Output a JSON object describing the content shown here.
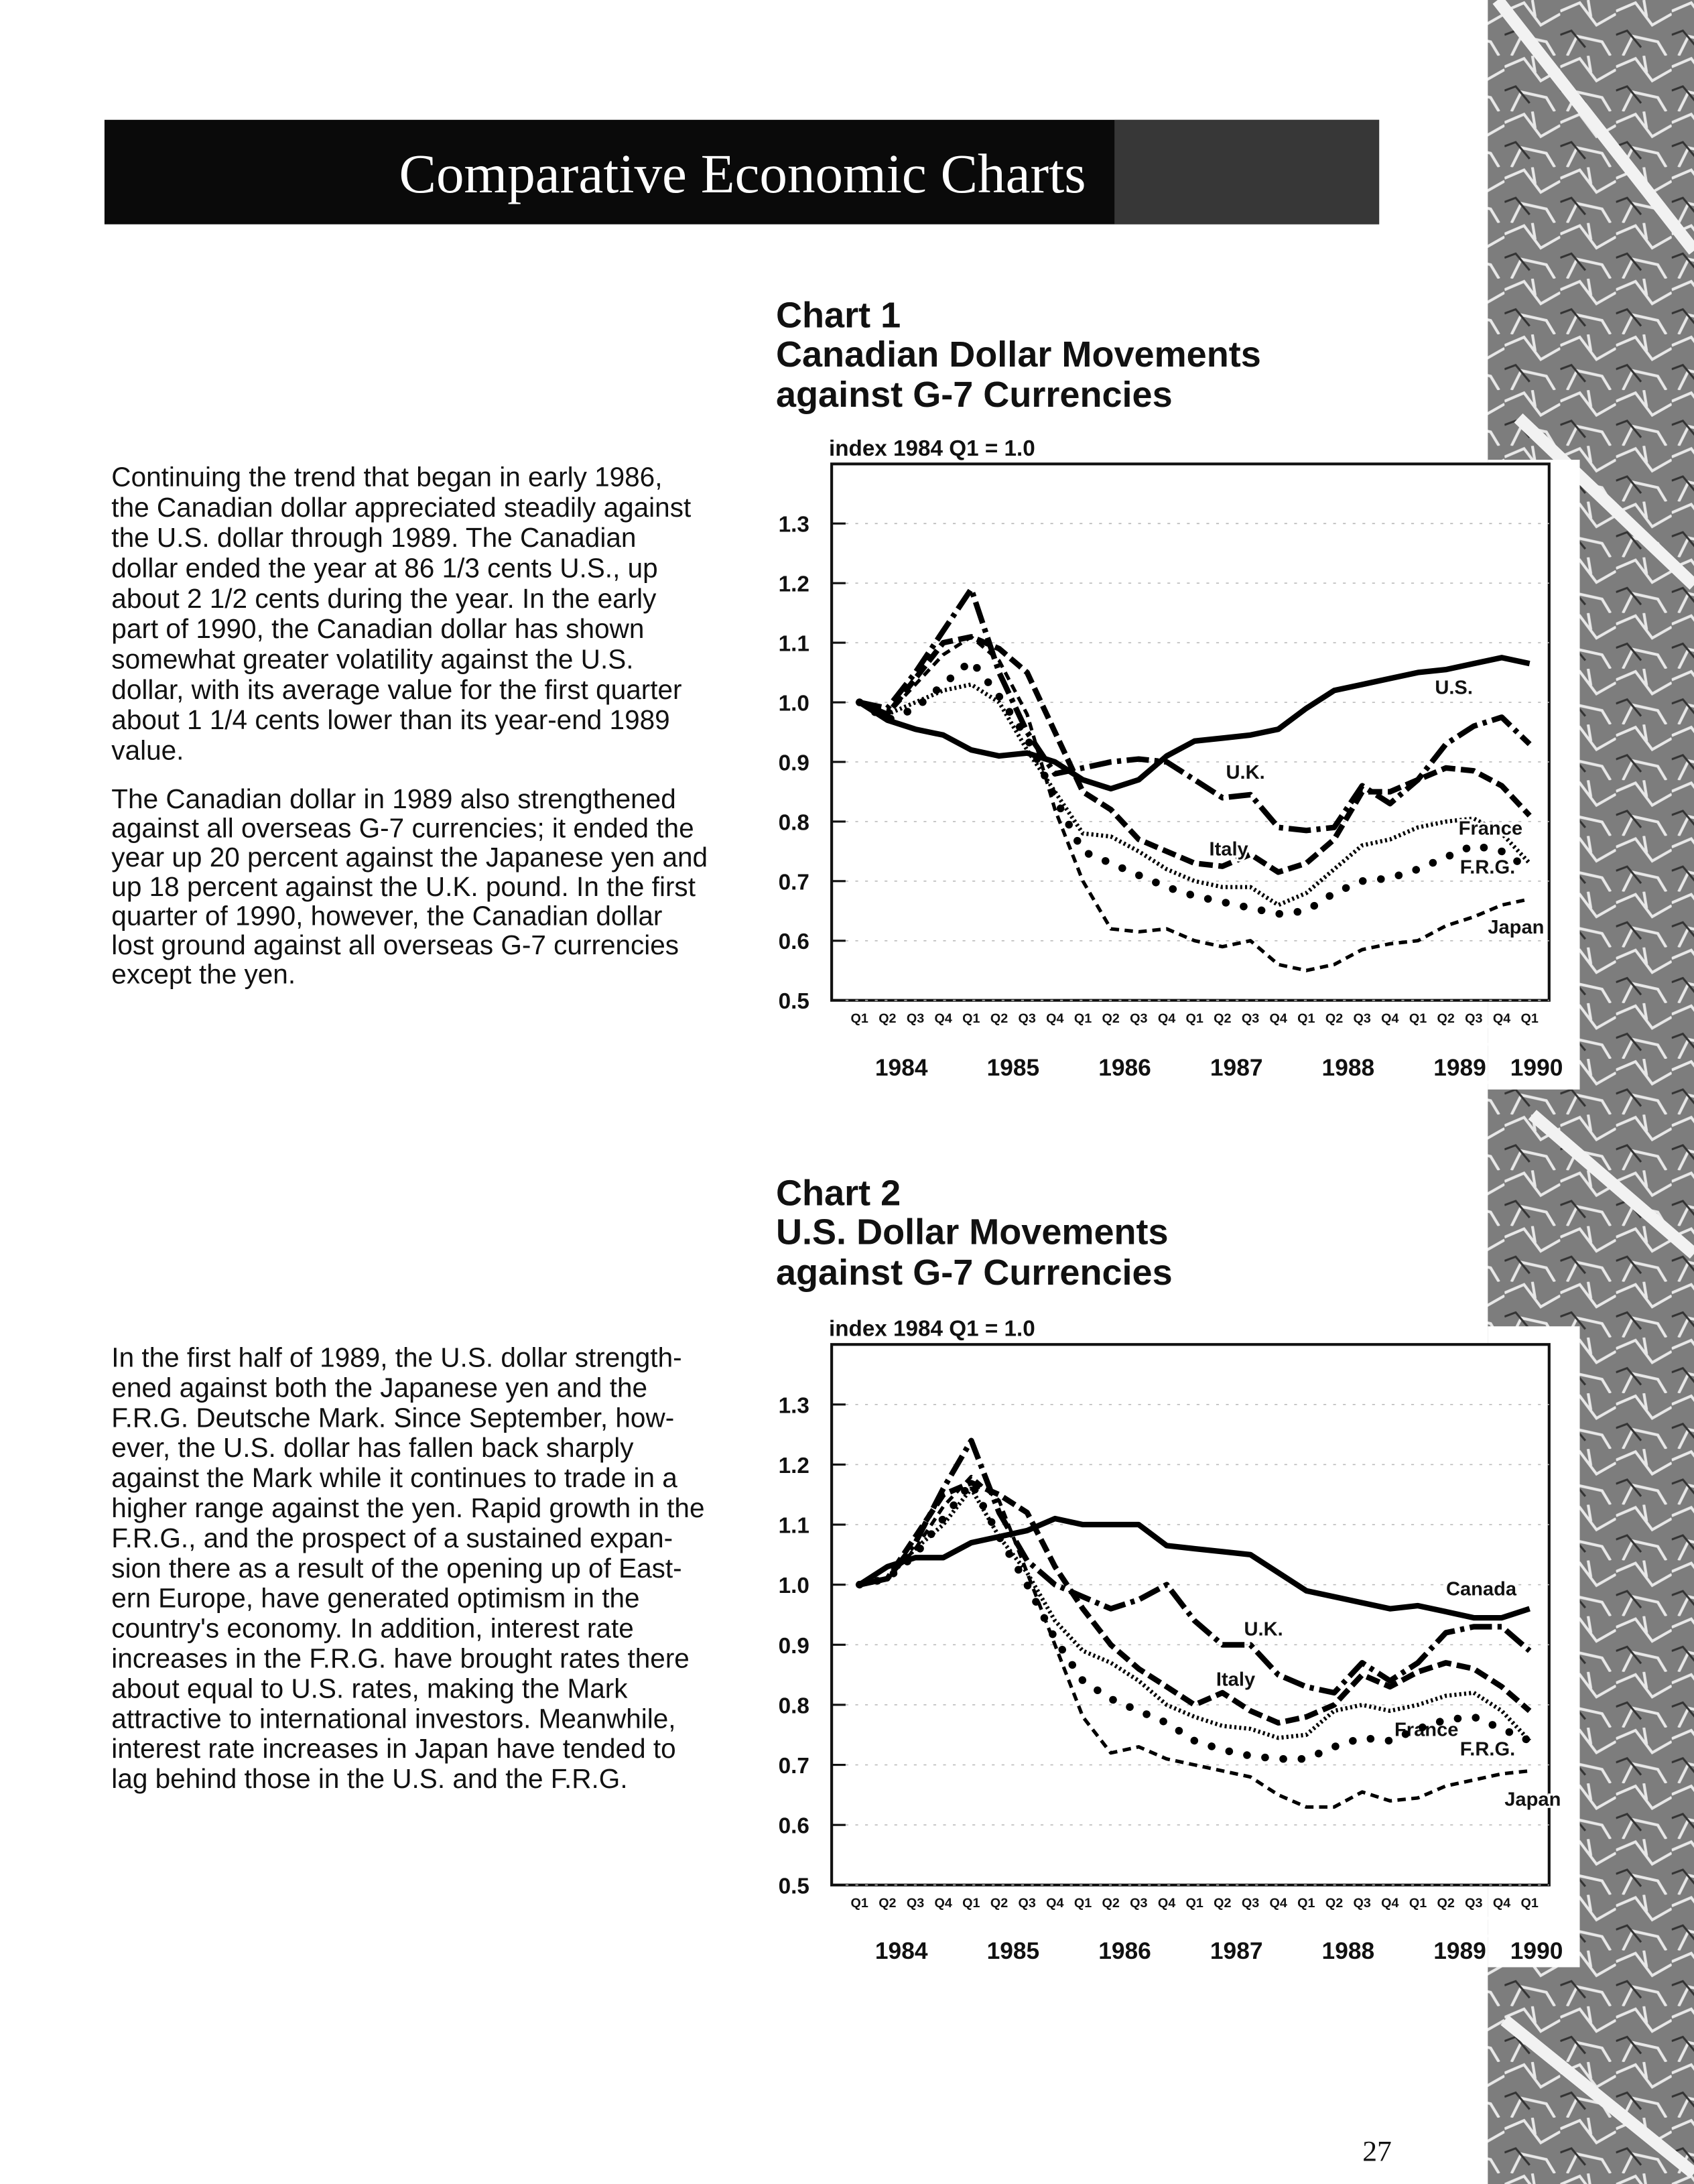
{
  "header": {
    "title": "Comparative Economic Charts"
  },
  "paragraphs": [
    [
      "Continuing the trend that began in early 1986,",
      "the Canadian dollar appreciated steadily against",
      "the U.S. dollar through 1989. The Canadian",
      "dollar ended the year at 86 1/3 cents U.S., up",
      "about 2 1/2 cents during the year. In the early",
      "part of 1990, the Canadian dollar has shown",
      "somewhat greater volatility against the U.S.",
      "dollar, with its average value for the first quarter",
      "about 1 1/4 cents lower than its year-end 1989",
      "value."
    ],
    [
      "The Canadian dollar in 1989 also strengthened",
      "against all overseas G-7 currencies; it ended the",
      "year up 20 percent against the Japanese yen and",
      "up 18 percent against the U.K. pound. In the first",
      "quarter of 1990, however, the Canadian dollar",
      "lost ground against all overseas G-7 currencies",
      "except the yen."
    ],
    [
      "In the first half of 1989, the U.S. dollar strength-",
      "ened against both the Japanese yen and the",
      "F.R.G. Deutsche Mark. Since September, how-",
      "ever, the U.S. dollar has fallen back sharply",
      "against the Mark while it continues to trade in a",
      "higher range against the yen. Rapid growth in the",
      "F.R.G., and the prospect of a sustained expan-",
      "sion there as a result of the opening up of East-",
      "ern Europe, have generated optimism in the",
      "country's economy. In addition, interest rate",
      "increases in the F.R.G. have brought rates there",
      "about equal to U.S. rates, making the Mark",
      "attractive to international investors. Meanwhile,",
      "interest rate increases in Japan have tended to",
      "lag behind those in the U.S. and the F.R.G."
    ]
  ],
  "page_number": "27",
  "chart_data": [
    {
      "type": "line",
      "title": "Chart 1",
      "subtitle": [
        "Canadian Dollar Movements",
        "against G-7 Currencies"
      ],
      "ylabel": "index 1984 Q1 = 1.0",
      "categories": [
        "Q1",
        "Q2",
        "Q3",
        "Q4",
        "Q1",
        "Q2",
        "Q3",
        "Q4",
        "Q1",
        "Q2",
        "Q3",
        "Q4",
        "Q1",
        "Q2",
        "Q3",
        "Q4",
        "Q1",
        "Q2",
        "Q3",
        "Q4",
        "Q1",
        "Q2",
        "Q3",
        "Q4",
        "Q1"
      ],
      "year_labels": [
        "1984",
        "1985",
        "1986",
        "1987",
        "1988",
        "1989",
        "1990"
      ],
      "ylim": [
        0.5,
        1.4
      ],
      "yticks": [
        0.5,
        0.6,
        0.7,
        0.8,
        0.9,
        {
          "value": 1,
          "label": "1.0"
        },
        1.1,
        1.2,
        1.3
      ],
      "grid": true,
      "series": [
        {
          "name": "U.S.",
          "color": "#000000",
          "style": "solid",
          "values": [
            1.0,
            0.97,
            0.955,
            0.945,
            0.92,
            0.91,
            0.915,
            0.9,
            0.87,
            0.855,
            0.87,
            0.91,
            0.935,
            0.94,
            0.945,
            0.955,
            0.99,
            1.02,
            1.03,
            1.04,
            1.05,
            1.055,
            1.065,
            1.075,
            1.065
          ]
        },
        {
          "name": "U.K.",
          "color": "#000000",
          "style": "dashdot",
          "values": [
            1.0,
            0.99,
            1.05,
            1.12,
            1.19,
            1.05,
            0.95,
            0.88,
            0.89,
            0.9,
            0.905,
            0.9,
            0.87,
            0.84,
            0.845,
            0.79,
            0.785,
            0.79,
            0.86,
            0.83,
            0.87,
            0.93,
            0.96,
            0.975,
            0.93
          ]
        },
        {
          "name": "Italy",
          "color": "#000000",
          "style": "dash",
          "values": [
            1.0,
            0.98,
            1.04,
            1.1,
            1.11,
            1.09,
            1.05,
            0.95,
            0.85,
            0.82,
            0.77,
            0.75,
            0.73,
            0.725,
            0.745,
            0.715,
            0.73,
            0.77,
            0.85,
            0.85,
            0.87,
            0.89,
            0.885,
            0.86,
            0.81
          ]
        },
        {
          "name": "France",
          "color": "#000000",
          "style": "dot",
          "values": [
            1.0,
            0.98,
            1.0,
            1.02,
            1.03,
            1.0,
            0.92,
            0.85,
            0.78,
            0.775,
            0.75,
            0.72,
            0.7,
            0.69,
            0.69,
            0.66,
            0.68,
            0.72,
            0.76,
            0.77,
            0.79,
            0.8,
            0.805,
            0.78,
            0.73
          ]
        },
        {
          "name": "F.R.G.",
          "color": "#000000",
          "style": "bigdot",
          "values": [
            1.0,
            0.97,
            0.99,
            1.03,
            1.07,
            1.01,
            0.94,
            0.84,
            0.75,
            0.73,
            0.71,
            0.69,
            0.675,
            0.665,
            0.655,
            0.645,
            0.65,
            0.68,
            0.7,
            0.705,
            0.72,
            0.74,
            0.76,
            0.75,
            0.72
          ]
        },
        {
          "name": "Japan",
          "color": "#000000",
          "style": "shortdash",
          "values": [
            1.0,
            0.98,
            1.03,
            1.08,
            1.11,
            1.07,
            0.98,
            0.82,
            0.7,
            0.62,
            0.615,
            0.62,
            0.6,
            0.59,
            0.6,
            0.56,
            0.55,
            0.56,
            0.585,
            0.595,
            0.6,
            0.625,
            0.64,
            0.66,
            0.67
          ]
        }
      ]
    },
    {
      "type": "line",
      "title": "Chart 2",
      "subtitle": [
        "U.S. Dollar Movements",
        "against G-7 Currencies"
      ],
      "ylabel": "index 1984 Q1 = 1.0",
      "categories": [
        "Q1",
        "Q2",
        "Q3",
        "Q4",
        "Q1",
        "Q2",
        "Q3",
        "Q4",
        "Q1",
        "Q2",
        "Q3",
        "Q4",
        "Q1",
        "Q2",
        "Q3",
        "Q4",
        "Q1",
        "Q2",
        "Q3",
        "Q4",
        "Q1",
        "Q2",
        "Q3",
        "Q4",
        "Q1"
      ],
      "year_labels": [
        "1984",
        "1985",
        "1986",
        "1987",
        "1988",
        "1989",
        "1990"
      ],
      "ylim": [
        0.5,
        1.4
      ],
      "yticks": [
        0.5,
        0.6,
        0.7,
        0.8,
        0.9,
        {
          "value": 1,
          "label": "1.0"
        },
        1.1,
        1.2,
        1.3
      ],
      "grid": true,
      "series": [
        {
          "name": "Canada",
          "color": "#000000",
          "style": "solid",
          "values": [
            1.0,
            1.03,
            1.045,
            1.045,
            1.07,
            1.08,
            1.09,
            1.11,
            1.1,
            1.1,
            1.1,
            1.065,
            1.06,
            1.055,
            1.05,
            1.02,
            0.99,
            0.98,
            0.97,
            0.96,
            0.965,
            0.955,
            0.945,
            0.945,
            0.96
          ]
        },
        {
          "name": "U.K.",
          "color": "#000000",
          "style": "dashdot",
          "values": [
            1.0,
            1.01,
            1.07,
            1.16,
            1.24,
            1.12,
            1.04,
            1.0,
            0.98,
            0.96,
            0.975,
            1.0,
            0.94,
            0.9,
            0.9,
            0.85,
            0.83,
            0.82,
            0.87,
            0.84,
            0.87,
            0.92,
            0.93,
            0.93,
            0.89
          ]
        },
        {
          "name": "Italy",
          "color": "#000000",
          "style": "dash",
          "values": [
            1.0,
            1.01,
            1.08,
            1.15,
            1.17,
            1.15,
            1.12,
            1.03,
            0.96,
            0.9,
            0.86,
            0.83,
            0.8,
            0.82,
            0.79,
            0.77,
            0.78,
            0.8,
            0.85,
            0.83,
            0.855,
            0.87,
            0.86,
            0.83,
            0.79
          ]
        },
        {
          "name": "France",
          "color": "#000000",
          "style": "dot",
          "values": [
            1.0,
            1.01,
            1.06,
            1.1,
            1.16,
            1.08,
            1.02,
            0.94,
            0.89,
            0.87,
            0.84,
            0.8,
            0.78,
            0.765,
            0.76,
            0.745,
            0.75,
            0.79,
            0.8,
            0.79,
            0.8,
            0.815,
            0.82,
            0.79,
            0.74
          ]
        },
        {
          "name": "F.R.G.",
          "color": "#000000",
          "style": "bigdot",
          "values": [
            1.0,
            1.01,
            1.05,
            1.11,
            1.17,
            1.08,
            1.0,
            0.91,
            0.84,
            0.81,
            0.79,
            0.77,
            0.74,
            0.725,
            0.715,
            0.71,
            0.71,
            0.73,
            0.745,
            0.74,
            0.76,
            0.775,
            0.78,
            0.76,
            0.74
          ]
        },
        {
          "name": "Japan",
          "color": "#000000",
          "style": "shortdash",
          "values": [
            1.0,
            1.01,
            1.06,
            1.13,
            1.18,
            1.14,
            1.02,
            0.9,
            0.78,
            0.72,
            0.73,
            0.71,
            0.7,
            0.69,
            0.68,
            0.65,
            0.63,
            0.63,
            0.655,
            0.64,
            0.645,
            0.665,
            0.675,
            0.685,
            0.69
          ]
        }
      ]
    }
  ]
}
